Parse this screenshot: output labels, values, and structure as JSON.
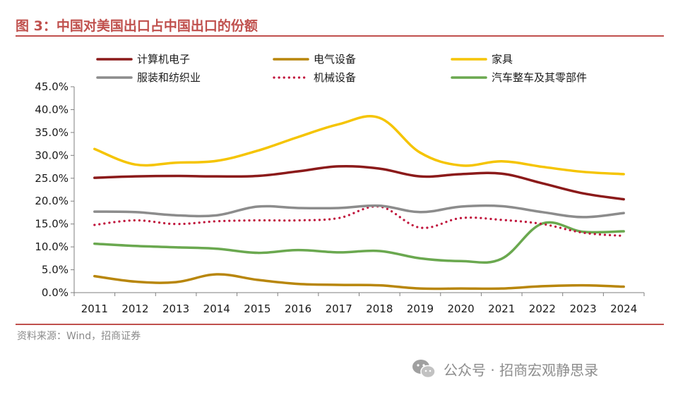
{
  "title": "图 3：中国对美国出口占中国出口的份额",
  "source": "资料来源：Wind，招商证券",
  "watermark": {
    "text": "公众号 · 招商宏观静思录",
    "icon": "wechat-icon"
  },
  "chart_data": {
    "type": "line",
    "title": "图 3：中国对美国出口占中国出口的份额",
    "xlabel": "",
    "ylabel": "",
    "ylim": [
      0,
      45
    ],
    "y_ticks": [
      "0.0%",
      "5.0%",
      "10.0%",
      "15.0%",
      "20.0%",
      "25.0%",
      "30.0%",
      "35.0%",
      "40.0%",
      "45.0%"
    ],
    "categories": [
      "2011",
      "2012",
      "2013",
      "2014",
      "2015",
      "2016",
      "2017",
      "2018",
      "2019",
      "2020",
      "2021",
      "2022",
      "2023",
      "2024"
    ],
    "legend_position": "top",
    "series": [
      {
        "name": "计算机电子",
        "color": "#8b1a1a",
        "style": "solid",
        "values": [
          25.1,
          25.4,
          25.5,
          25.4,
          25.5,
          26.5,
          27.6,
          27.1,
          25.4,
          25.9,
          26.0,
          23.9,
          21.7,
          20.4
        ]
      },
      {
        "name": "电气设备",
        "color": "#b8860b",
        "style": "solid",
        "values": [
          3.6,
          2.4,
          2.3,
          4.0,
          2.8,
          1.9,
          1.7,
          1.6,
          0.9,
          0.9,
          0.9,
          1.4,
          1.6,
          1.3
        ]
      },
      {
        "name": "家具",
        "color": "#f5c400",
        "style": "solid",
        "values": [
          31.4,
          28.0,
          28.4,
          28.8,
          31.0,
          34.0,
          36.8,
          38.2,
          30.6,
          27.8,
          28.7,
          27.5,
          26.4,
          25.9
        ]
      },
      {
        "name": "服装和纺织业",
        "color": "#8c8c8c",
        "style": "solid",
        "values": [
          17.7,
          17.6,
          16.9,
          16.9,
          18.8,
          18.5,
          18.5,
          19.0,
          17.6,
          18.8,
          18.9,
          17.6,
          16.5,
          17.4
        ]
      },
      {
        "name": "机械设备",
        "color": "#c0143c",
        "style": "dotted",
        "values": [
          14.8,
          15.8,
          15.0,
          15.6,
          15.8,
          15.8,
          16.3,
          18.8,
          14.2,
          16.3,
          15.9,
          15.0,
          13.1,
          12.4
        ]
      },
      {
        "name": "汽车整车及其零部件",
        "color": "#6aa84f",
        "style": "solid",
        "values": [
          10.7,
          10.2,
          9.9,
          9.6,
          8.7,
          9.3,
          8.8,
          9.1,
          7.5,
          6.9,
          7.4,
          15.1,
          13.3,
          13.4
        ]
      }
    ]
  }
}
